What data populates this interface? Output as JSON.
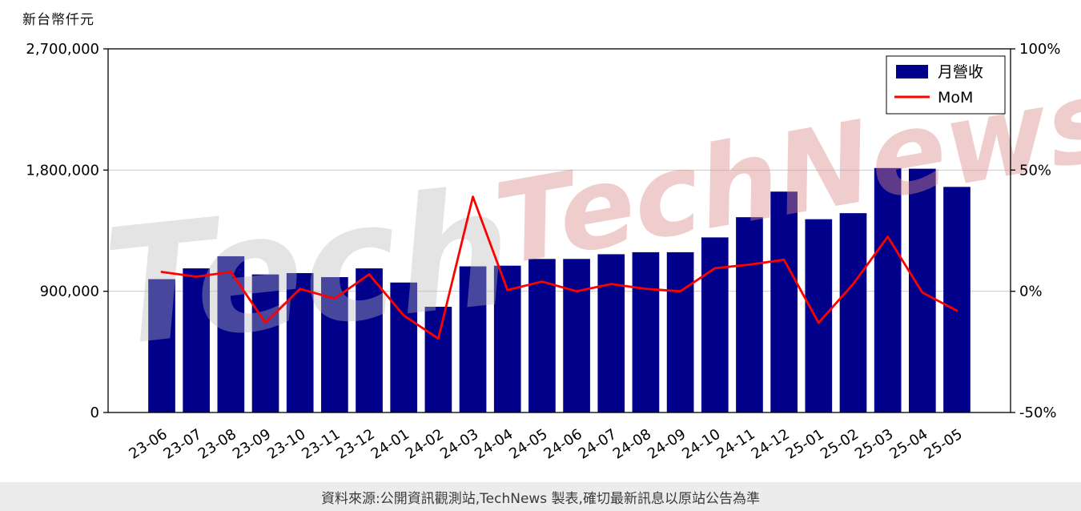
{
  "page": {
    "unit_label": "新台幣仟元",
    "footer_text": "資料來源:公開資訊觀測站,TechNews 製表,確切最新訊息以原站公告為準",
    "watermarks": {
      "primary": "TechNews",
      "secondary": "Tech"
    }
  },
  "legend": {
    "items": [
      {
        "label": "月營收",
        "type": "bar"
      },
      {
        "label": "MoM",
        "type": "line"
      }
    ]
  },
  "colors": {
    "bar": "#00008B",
    "line": "#FF0000",
    "grid": "#cccccc",
    "frame": "#000000",
    "watermark_pink": "#dd8a8a",
    "watermark_gray": "#bbbbbb",
    "footer_bg": "#ececec"
  },
  "chart_data": {
    "type": "bar+line",
    "title": "",
    "categories": [
      "23-06",
      "23-07",
      "23-08",
      "23-09",
      "23-10",
      "23-11",
      "23-12",
      "24-01",
      "24-02",
      "24-03",
      "24-04",
      "24-05",
      "24-06",
      "24-07",
      "24-08",
      "24-09",
      "24-10",
      "24-11",
      "24-12",
      "25-01",
      "25-02",
      "25-03",
      "25-04",
      "25-05"
    ],
    "series": [
      {
        "name": "月營收",
        "type": "bar",
        "axis": "left",
        "values": [
          990000,
          1070000,
          1160000,
          1025000,
          1035000,
          1005000,
          1070000,
          965000,
          785000,
          1085000,
          1090000,
          1140000,
          1140000,
          1175000,
          1190000,
          1190000,
          1300000,
          1450000,
          1640000,
          1435000,
          1480000,
          1815000,
          1810000,
          1675000
        ]
      },
      {
        "name": "MoM",
        "type": "line",
        "axis": "right",
        "values": [
          8,
          6,
          8,
          -13,
          1,
          -3,
          7,
          -10,
          -19.5,
          39,
          0.5,
          4,
          0,
          3,
          1,
          0,
          9.5,
          11,
          13,
          -13,
          3,
          22.5,
          -0.5,
          -8
        ]
      }
    ],
    "left_axis": {
      "min": 0,
      "max": 2700000,
      "tick_values": [
        0,
        900000,
        1800000,
        2700000
      ],
      "tick_labels": [
        "0",
        "900,000",
        "1,800,000",
        "2,700,000"
      ]
    },
    "right_axis": {
      "min": -50,
      "max": 100,
      "tick_values": [
        -50,
        0,
        50,
        100
      ],
      "tick_labels": [
        "-50%",
        "0%",
        "50%",
        "100%"
      ]
    },
    "grid": "horizontal",
    "legend_position": "top-right"
  }
}
